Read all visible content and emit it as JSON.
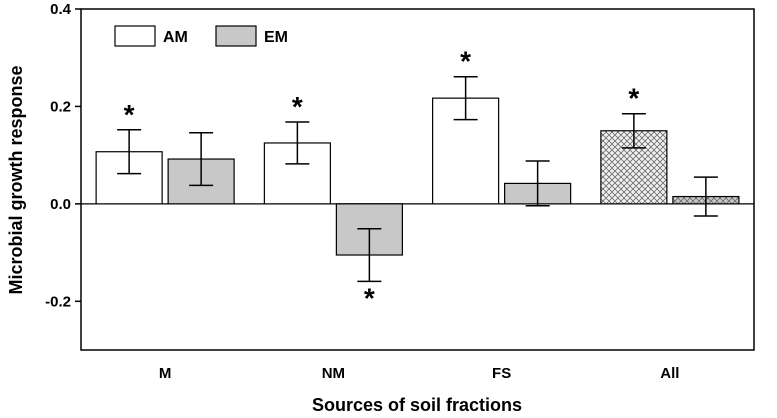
{
  "chart_data": {
    "type": "bar",
    "xlabel": "Sources of soil fractions",
    "ylabel": "Microbial growth response",
    "categories": [
      "M",
      "NM",
      "FS",
      "All"
    ],
    "ylim": [
      -0.3,
      0.4
    ],
    "yticks": [
      "-0.2",
      "0.0",
      "0.2",
      "0.4"
    ],
    "series": [
      {
        "name": "AM",
        "color": "#ffffff",
        "values": [
          0.107,
          0.125,
          0.217,
          0.15
        ],
        "errors": [
          0.045,
          0.043,
          0.044,
          0.035
        ],
        "significant": [
          "*",
          "*",
          "*",
          "*"
        ]
      },
      {
        "name": "EM",
        "color": "#c8c8c8",
        "values": [
          0.092,
          -0.105,
          0.042,
          0.015
        ],
        "errors": [
          0.054,
          0.054,
          0.046,
          0.04
        ],
        "significant": [
          "",
          "*",
          "",
          ""
        ]
      }
    ],
    "hatched_category": "All",
    "legend": {
      "placement": "top-left"
    },
    "grid": false
  }
}
